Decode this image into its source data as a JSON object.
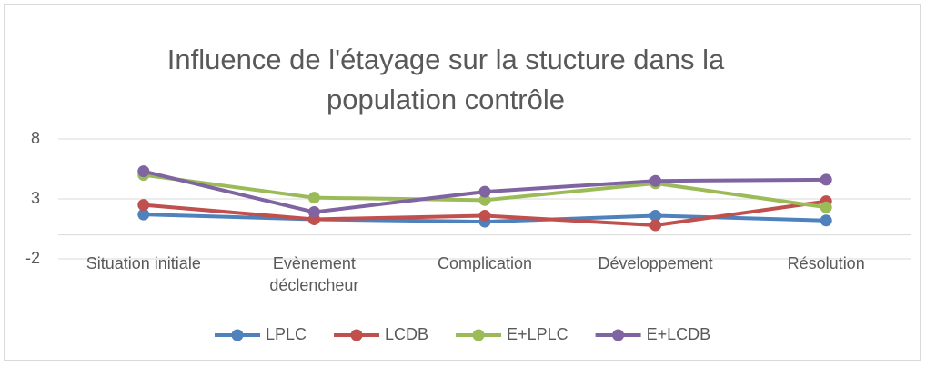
{
  "chart_data": {
    "type": "line",
    "title": "Influence de l'étayage sur la stucture dans la population contrôle",
    "categories": [
      "Situation initiale",
      "Evènement déclencheur",
      "Complication",
      "Développement",
      "Résolution"
    ],
    "series": [
      {
        "name": "LPLC",
        "color": "#4f81bd",
        "values": [
          1.7,
          1.3,
          1.1,
          1.6,
          1.2
        ]
      },
      {
        "name": "LCDB",
        "color": "#c0504d",
        "values": [
          2.5,
          1.3,
          1.6,
          0.8,
          2.8
        ]
      },
      {
        "name": "E+LPLC",
        "color": "#9bbb59",
        "values": [
          5.0,
          3.1,
          2.9,
          4.3,
          2.3
        ]
      },
      {
        "name": "E+LCDB",
        "color": "#8064a2",
        "values": [
          5.3,
          1.9,
          3.6,
          4.5,
          4.6
        ]
      }
    ],
    "ylim": [
      -2,
      8
    ],
    "yticks": [
      -2,
      3,
      8
    ],
    "grid": true,
    "legend": "bottom"
  }
}
